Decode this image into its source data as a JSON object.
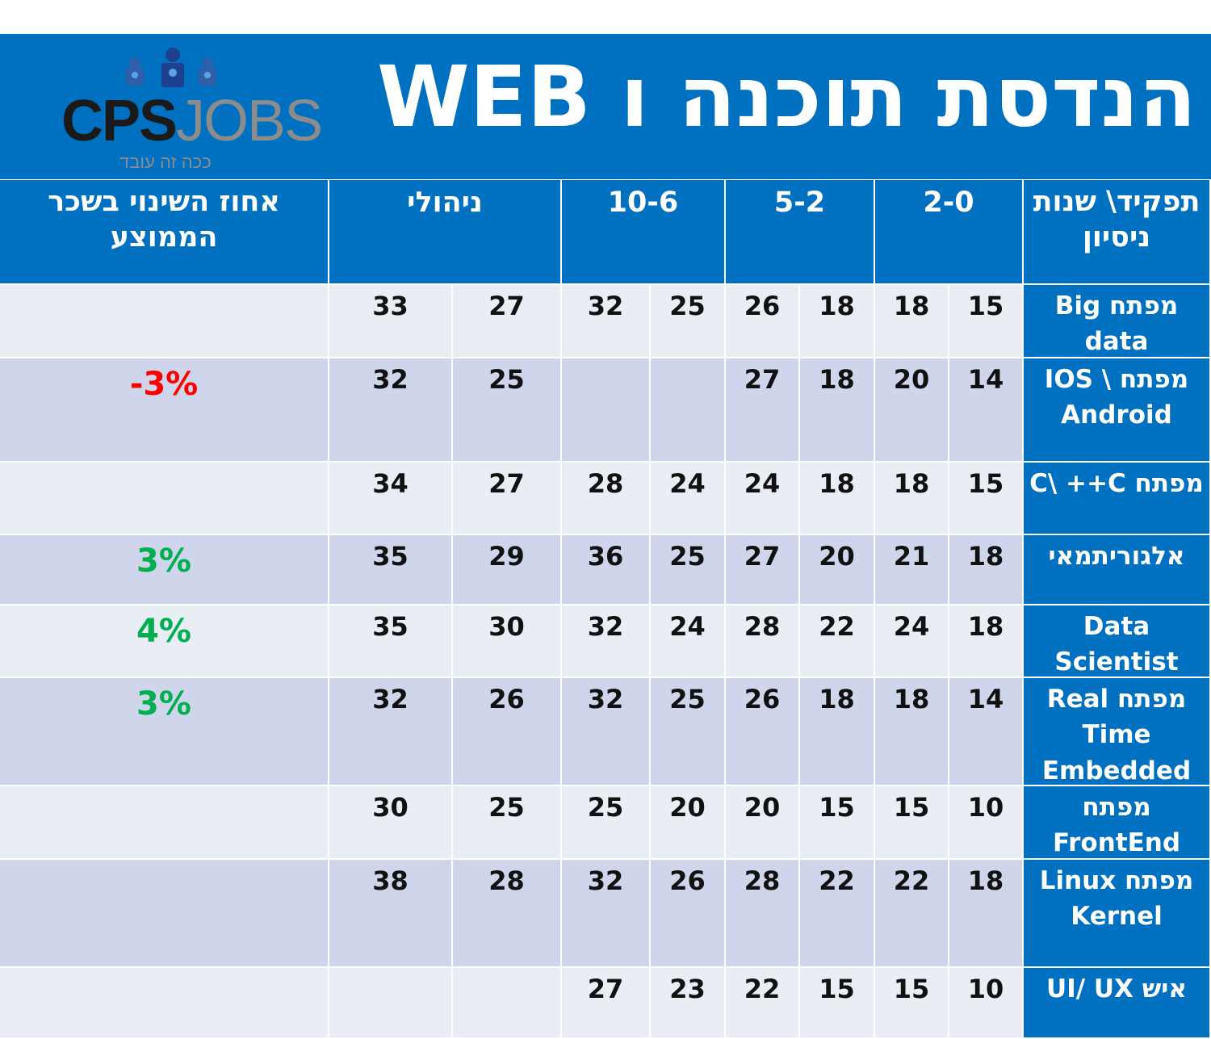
{
  "header": {
    "title": "הנדסת תוכנה ו WEB",
    "logo": {
      "primary": "CPS",
      "secondary": "JOBS",
      "tagline": "ככה זה עובד"
    }
  },
  "columns": {
    "role": "תפקיד\\ שנות ניסיון",
    "exp_0_2": "2-0",
    "exp_2_5": "5-2",
    "exp_6_10": "10-6",
    "management": "ניהולי",
    "change": "אחוז השינוי בשכר הממוצע"
  },
  "colors": {
    "header_bg": "#0070c0",
    "row_light": "#e9edf4",
    "row_dark": "#cfd5ea",
    "positive": "#00b050",
    "negative": "#ff0000"
  },
  "rows": [
    {
      "role": "מפתח Big data",
      "values": [
        "15",
        "18",
        "18",
        "26",
        "25",
        "32",
        "27",
        "33"
      ],
      "change": ""
    },
    {
      "role": "מפתח \\ IOS Android",
      "values": [
        "14",
        "20",
        "18",
        "27",
        "",
        "",
        "25",
        "32"
      ],
      "change": "-3%",
      "change_color": "#ff0000"
    },
    {
      "role": "מפתח C\\ ++C",
      "values": [
        "15",
        "18",
        "18",
        "24",
        "24",
        "28",
        "27",
        "34"
      ],
      "change": ""
    },
    {
      "role": "אלגוריתמאי",
      "values": [
        "18",
        "21",
        "20",
        "27",
        "25",
        "36",
        "29",
        "35"
      ],
      "change": "3%",
      "change_color": "#00b050"
    },
    {
      "role": "Data Scientist",
      "values": [
        "18",
        "24",
        "22",
        "28",
        "24",
        "32",
        "30",
        "35"
      ],
      "change": "4%",
      "change_color": "#00b050"
    },
    {
      "role": "מפתח Real Time Embedded",
      "values": [
        "14",
        "18",
        "18",
        "26",
        "25",
        "32",
        "26",
        "32"
      ],
      "change": "3%",
      "change_color": "#00b050"
    },
    {
      "role": "מפתח FrontEnd",
      "values": [
        "10",
        "15",
        "15",
        "20",
        "20",
        "25",
        "25",
        "30"
      ],
      "change": ""
    },
    {
      "role": "מפתח Linux Kernel",
      "values": [
        "18",
        "22",
        "22",
        "28",
        "26",
        "32",
        "28",
        "38"
      ],
      "change": ""
    },
    {
      "role": "איש UI/ UX",
      "values": [
        "10",
        "15",
        "15",
        "22",
        "23",
        "27",
        "",
        ""
      ],
      "change": ""
    }
  ]
}
